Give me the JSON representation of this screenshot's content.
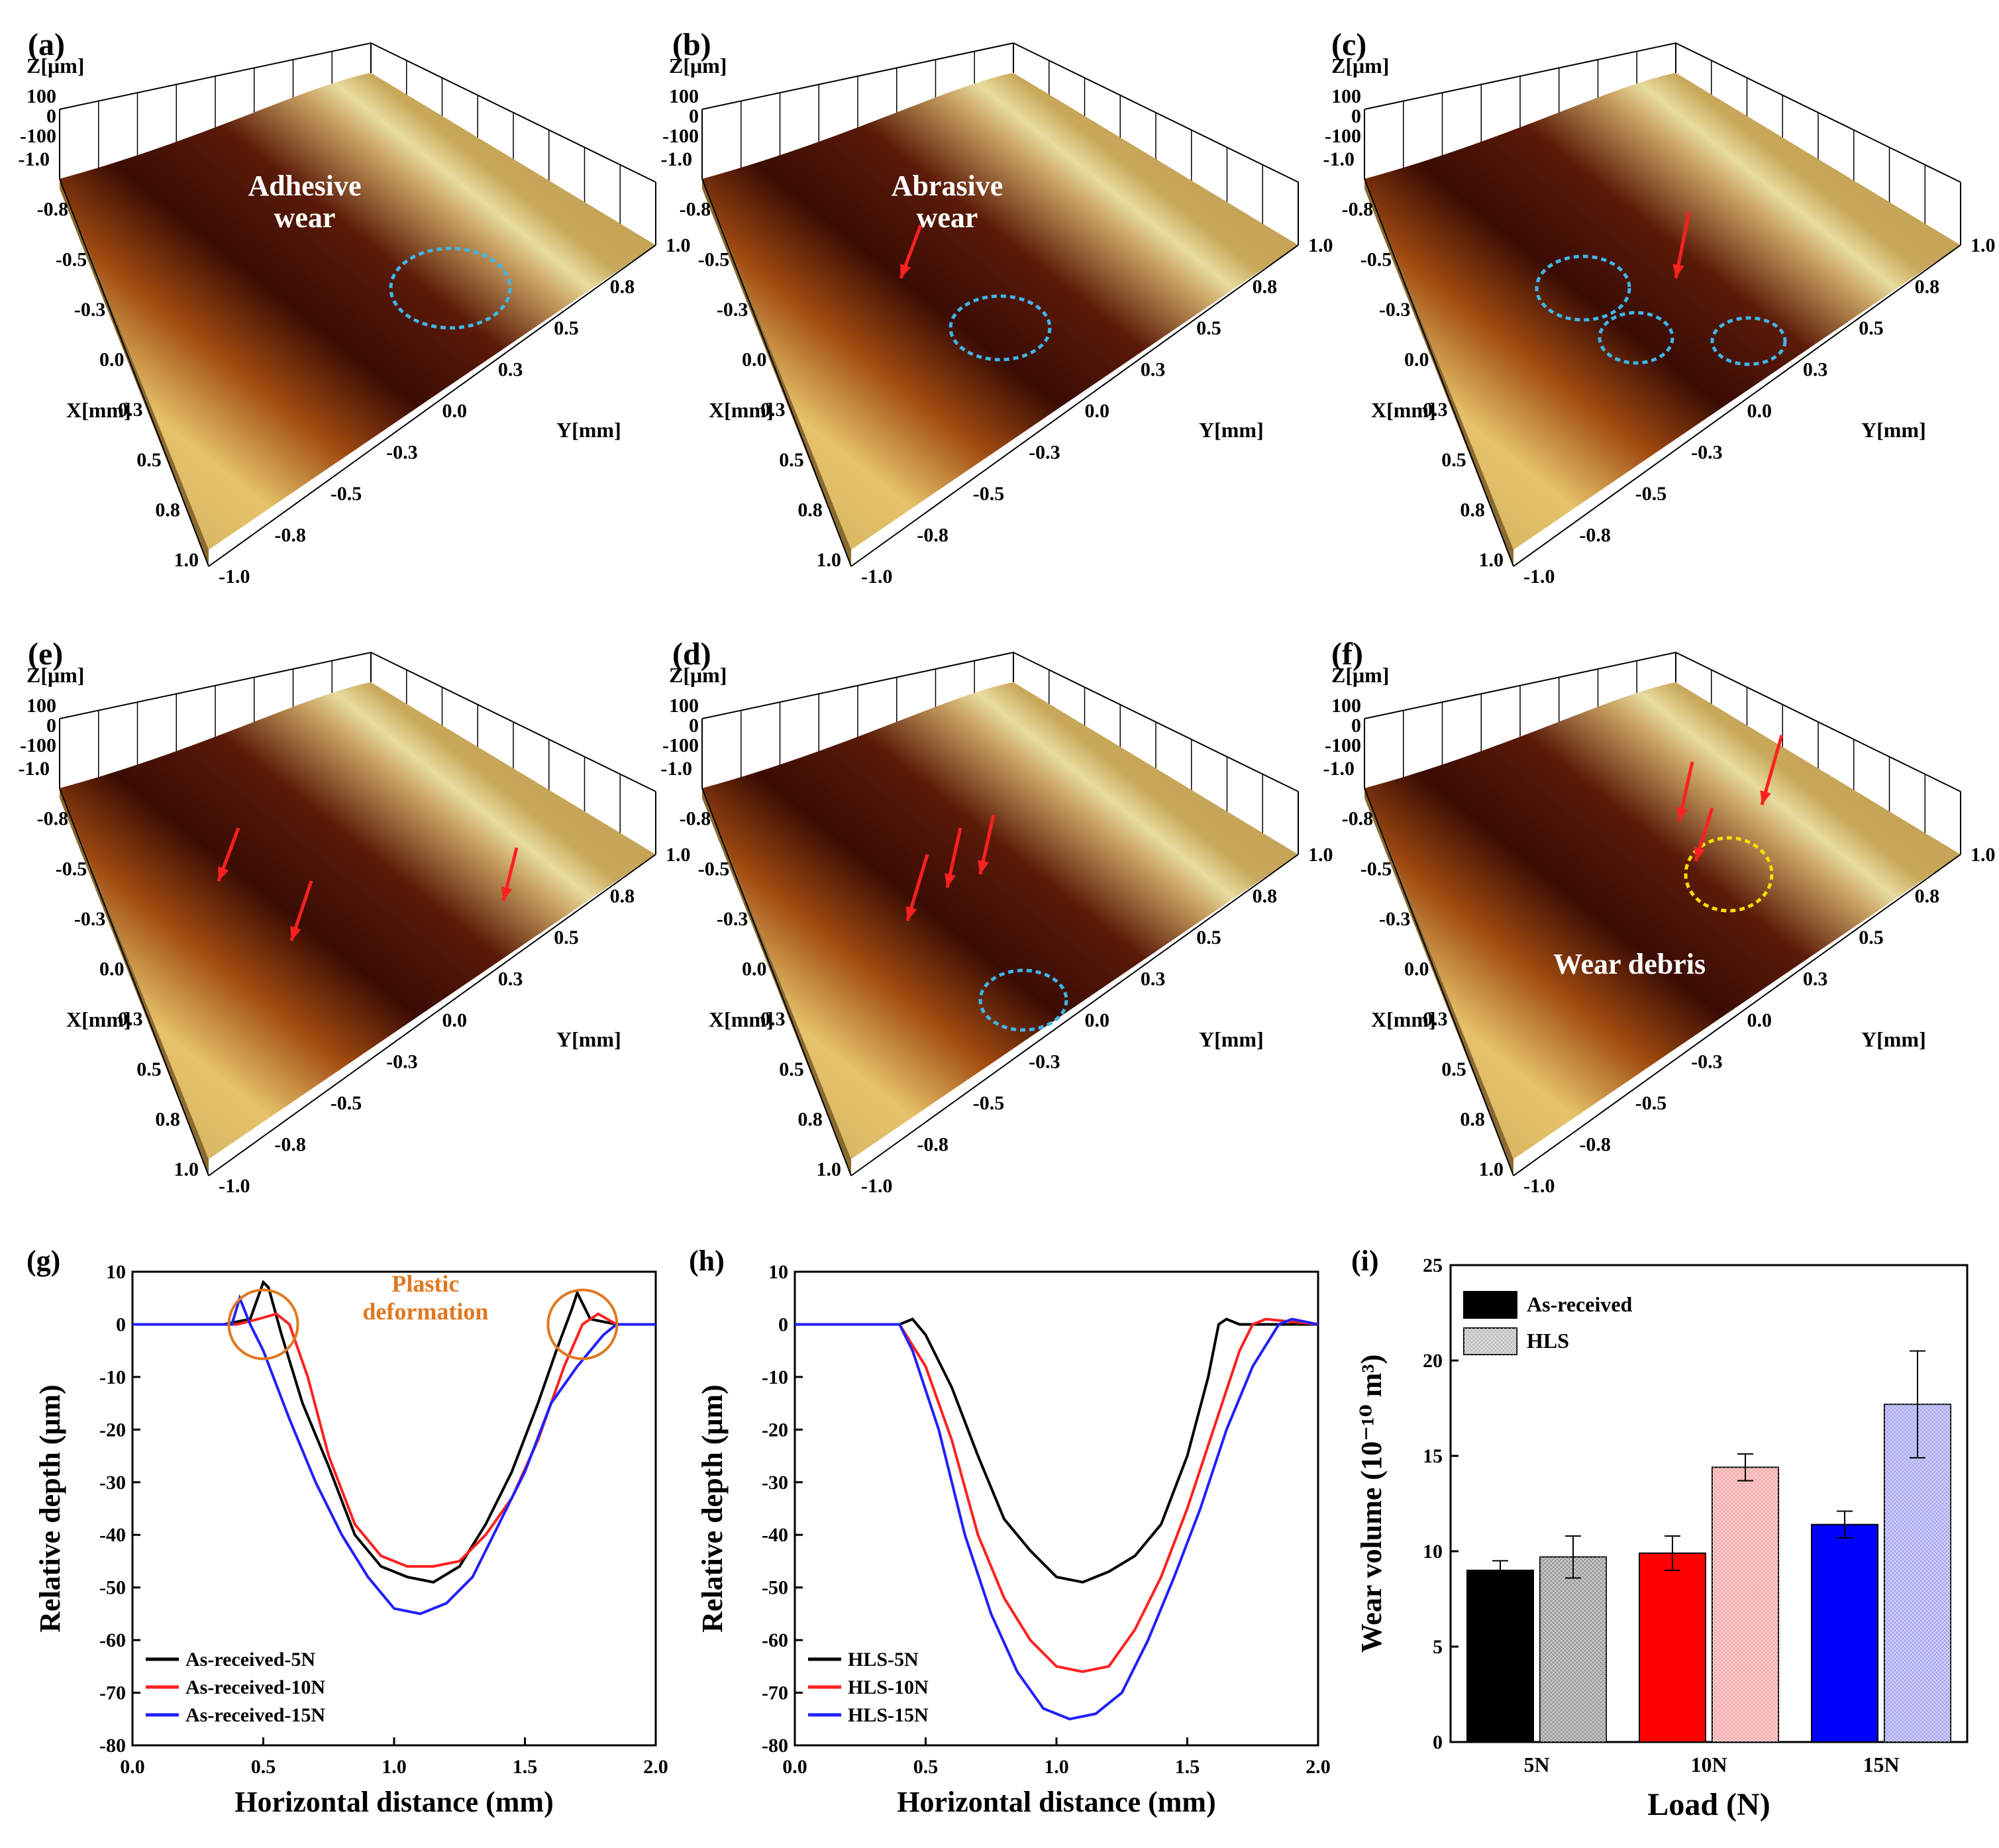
{
  "surface_panels": [
    {
      "label": "(a)",
      "annotation": [
        "Adhesive",
        "wear"
      ],
      "annotation_color": "#ffffff",
      "z_label": "Z[μm]",
      "x_label": "X[mm]",
      "y_label": "Y[mm]",
      "z_ticks": [
        "100",
        "0",
        "-100"
      ],
      "x_ticks": [
        "-1.0",
        "-0.8",
        "-0.5",
        "-0.3",
        "0.0",
        "0.3",
        "0.5",
        "0.8",
        "1.0"
      ],
      "y_ticks": [
        "1.0",
        "0.8",
        "0.5",
        "0.3",
        "0.0",
        "-0.3",
        "-0.5",
        "-0.8",
        "-1.0"
      ]
    },
    {
      "label": "(b)",
      "annotation": [
        "Abrasive",
        "wear"
      ],
      "annotation_color": "#ffffff",
      "z_label": "Z[μm]",
      "x_label": "X[mm]",
      "y_label": "Y[mm]",
      "z_ticks": [
        "100",
        "0",
        "-100"
      ],
      "x_ticks": [
        "-1.0",
        "-0.8",
        "-0.5",
        "-0.3",
        "0.0",
        "0.3",
        "0.5",
        "0.8",
        "1.0"
      ],
      "y_ticks": [
        "1.0",
        "0.8",
        "0.5",
        "0.3",
        "0.0",
        "-0.3",
        "-0.5",
        "-0.8",
        "-1.0"
      ]
    },
    {
      "label": "(c)",
      "annotation": [],
      "annotation_color": "#ffffff",
      "z_label": "Z[μm]",
      "x_label": "X[mm]",
      "y_label": "Y[mm]",
      "z_ticks": [
        "100",
        "0",
        "-100"
      ],
      "x_ticks": [
        "-1.0",
        "-0.8",
        "-0.5",
        "-0.3",
        "0.0",
        "0.3",
        "0.5",
        "0.8",
        "1.0"
      ],
      "y_ticks": [
        "1.0",
        "0.8",
        "0.5",
        "0.3",
        "0.0",
        "-0.3",
        "-0.5",
        "-0.8",
        "-1.0"
      ]
    },
    {
      "label": "(e)",
      "annotation": [],
      "annotation_color": "#ffffff",
      "z_label": "Z[μm]",
      "x_label": "X[mm]",
      "y_label": "Y[mm]",
      "z_ticks": [
        "100",
        "0",
        "-100"
      ],
      "x_ticks": [
        "-1.0",
        "-0.8",
        "-0.5",
        "-0.3",
        "0.0",
        "0.3",
        "0.5",
        "0.8",
        "1.0"
      ],
      "y_ticks": [
        "1.0",
        "0.8",
        "0.5",
        "0.3",
        "0.0",
        "-0.3",
        "-0.5",
        "-0.8",
        "-1.0"
      ]
    },
    {
      "label": "(d)",
      "annotation": [],
      "annotation_color": "#ffffff",
      "z_label": "Z[μm]",
      "x_label": "X[mm]",
      "y_label": "Y[mm]",
      "z_ticks": [
        "100",
        "0",
        "-100"
      ],
      "x_ticks": [
        "-1.0",
        "-0.8",
        "-0.5",
        "-0.3",
        "0.0",
        "0.3",
        "0.5",
        "0.8",
        "1.0"
      ],
      "y_ticks": [
        "1.0",
        "0.8",
        "0.5",
        "0.3",
        "0.0",
        "-0.3",
        "-0.5",
        "-0.8",
        "-1.0"
      ]
    },
    {
      "label": "(f)",
      "annotation": [
        "Wear debris"
      ],
      "annotation_color": "#ffffff",
      "z_label": "Z[μm]",
      "x_label": "X[mm]",
      "y_label": "Y[mm]",
      "z_ticks": [
        "100",
        "0",
        "-100"
      ],
      "x_ticks": [
        "-1.0",
        "-0.8",
        "-0.5",
        "-0.3",
        "0.0",
        "0.3",
        "0.5",
        "0.8",
        "1.0"
      ],
      "y_ticks": [
        "1.0",
        "0.8",
        "0.5",
        "0.3",
        "0.0",
        "-0.3",
        "-0.5",
        "-0.8",
        "-1.0"
      ]
    }
  ],
  "colors": {
    "black": "#000000",
    "red": "#ff2020",
    "blue": "#2020ff",
    "orange": "#e07820",
    "cyan_marker": "#3fb6e8",
    "yellow_marker": "#f5e000",
    "surface_light": "#c9a85a",
    "surface_dark": "#3a0c04"
  },
  "chart_data": [
    {
      "panel": "(g)",
      "type": "line",
      "xlabel": "Horizontal distance (mm)",
      "ylabel": "Relative depth (μm)",
      "xlim": [
        0.0,
        2.0
      ],
      "ylim": [
        -80,
        10
      ],
      "xticks": [
        "0.0",
        "0.5",
        "1.0",
        "1.5",
        "2.0"
      ],
      "yticks": [
        "10",
        "0",
        "-10",
        "-20",
        "-30",
        "-40",
        "-50",
        "-60",
        "-70",
        "-80"
      ],
      "annotation": [
        "Plastic",
        "deformation"
      ],
      "legend_position": "bottom-left",
      "series": [
        {
          "name": "As-received-5N",
          "color": "#000000",
          "x": [
            0.0,
            0.35,
            0.45,
            0.5,
            0.52,
            0.57,
            0.65,
            0.75,
            0.85,
            0.95,
            1.05,
            1.15,
            1.25,
            1.35,
            1.45,
            1.55,
            1.62,
            1.68,
            1.7,
            1.75,
            1.85,
            2.0
          ],
          "y": [
            0,
            0,
            1,
            8,
            7,
            -2,
            -15,
            -27,
            -40,
            -46,
            -48,
            -49,
            -46,
            -38,
            -28,
            -15,
            -5,
            3,
            6,
            1,
            0,
            0
          ]
        },
        {
          "name": "As-received-10N",
          "color": "#ff2020",
          "x": [
            0.0,
            0.4,
            0.48,
            0.55,
            0.6,
            0.67,
            0.75,
            0.85,
            0.95,
            1.05,
            1.15,
            1.25,
            1.35,
            1.45,
            1.55,
            1.65,
            1.72,
            1.78,
            1.85,
            2.0
          ],
          "y": [
            0,
            0,
            1,
            2,
            0,
            -10,
            -25,
            -38,
            -44,
            -46,
            -46,
            -45,
            -40,
            -33,
            -22,
            -8,
            0,
            2,
            0,
            0
          ]
        },
        {
          "name": "As-received-15N",
          "color": "#2020ff",
          "x": [
            0.0,
            0.38,
            0.41,
            0.45,
            0.5,
            0.6,
            0.7,
            0.8,
            0.9,
            1.0,
            1.1,
            1.2,
            1.3,
            1.4,
            1.5,
            1.6,
            1.7,
            1.8,
            1.85,
            2.0
          ],
          "y": [
            0,
            0,
            5,
            0,
            -5,
            -18,
            -30,
            -40,
            -48,
            -54,
            -55,
            -53,
            -48,
            -38,
            -28,
            -15,
            -8,
            -2,
            0,
            0
          ]
        }
      ]
    },
    {
      "panel": "(h)",
      "type": "line",
      "xlabel": "Horizontal distance (mm)",
      "ylabel": "Relative depth (μm)",
      "xlim": [
        0.0,
        2.0
      ],
      "ylim": [
        -80,
        10
      ],
      "xticks": [
        "0.0",
        "0.5",
        "1.0",
        "1.5",
        "2.0"
      ],
      "yticks": [
        "10",
        "0",
        "-10",
        "-20",
        "-30",
        "-40",
        "-50",
        "-60",
        "-70",
        "-80"
      ],
      "legend_position": "bottom-left",
      "series": [
        {
          "name": "HLS-5N",
          "color": "#000000",
          "x": [
            0.0,
            0.4,
            0.45,
            0.5,
            0.6,
            0.7,
            0.8,
            0.9,
            1.0,
            1.1,
            1.2,
            1.3,
            1.4,
            1.5,
            1.58,
            1.62,
            1.65,
            1.7,
            2.0
          ],
          "y": [
            0,
            0,
            1,
            -2,
            -12,
            -25,
            -37,
            -43,
            -48,
            -49,
            -47,
            -44,
            -38,
            -25,
            -10,
            0,
            1,
            0,
            0
          ]
        },
        {
          "name": "HLS-10N",
          "color": "#ff2020",
          "x": [
            0.0,
            0.4,
            0.5,
            0.6,
            0.7,
            0.8,
            0.9,
            1.0,
            1.1,
            1.2,
            1.3,
            1.4,
            1.5,
            1.6,
            1.7,
            1.75,
            1.8,
            2.0
          ],
          "y": [
            0,
            0,
            -8,
            -22,
            -40,
            -52,
            -60,
            -65,
            -66,
            -65,
            -58,
            -48,
            -35,
            -20,
            -5,
            0,
            1,
            0
          ]
        },
        {
          "name": "HLS-15N",
          "color": "#2020ff",
          "x": [
            0.0,
            0.4,
            0.45,
            0.55,
            0.65,
            0.75,
            0.85,
            0.95,
            1.05,
            1.15,
            1.25,
            1.35,
            1.45,
            1.55,
            1.65,
            1.75,
            1.85,
            1.9,
            2.0
          ],
          "y": [
            0,
            0,
            -5,
            -20,
            -40,
            -55,
            -66,
            -73,
            -75,
            -74,
            -70,
            -60,
            -48,
            -35,
            -20,
            -8,
            0,
            1,
            0
          ]
        }
      ]
    },
    {
      "panel": "(i)",
      "type": "bar",
      "xlabel": "Load (N)",
      "ylabel": "Wear volume (10⁻¹⁰ m³)",
      "ylim": [
        0,
        25
      ],
      "yticks": [
        "0",
        "5",
        "10",
        "15",
        "20",
        "25"
      ],
      "categories": [
        "5N",
        "10N",
        "15N"
      ],
      "legend_position": "top-left",
      "series": [
        {
          "name": "As-received",
          "values": [
            9.0,
            9.9,
            11.4
          ],
          "errors": [
            0.5,
            0.9,
            0.7
          ],
          "colors": [
            "#000000",
            "#ff0000",
            "#0000ff"
          ],
          "hatched": false
        },
        {
          "name": "HLS",
          "values": [
            9.7,
            14.4,
            17.7
          ],
          "errors": [
            1.1,
            0.7,
            2.8
          ],
          "colors": [
            "#9a9a9a",
            "#f4a8a8",
            "#a8a8f4"
          ],
          "hatched": true
        }
      ]
    }
  ]
}
